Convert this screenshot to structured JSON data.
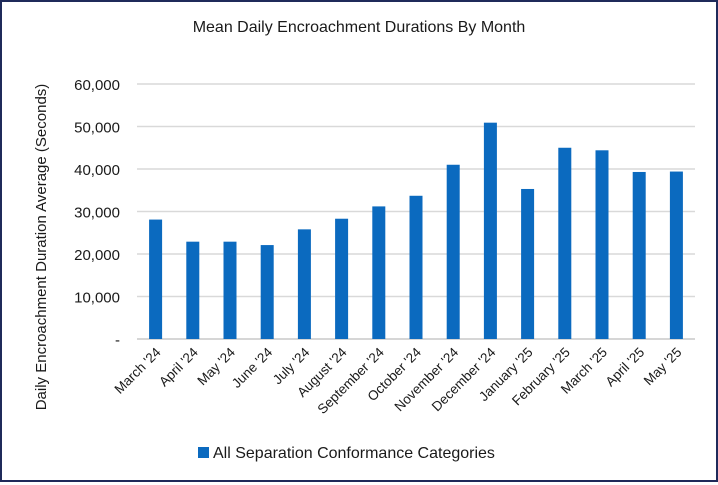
{
  "chart_data": {
    "type": "bar",
    "title": "Mean Daily Encroachment Durations By Month",
    "xlabel": "",
    "ylabel": "Daily Encroachment Duration Average (Seconds)",
    "categories": [
      "March '24",
      "April '24",
      "May '24",
      "June '24",
      "July '24",
      "August '24",
      "September '24",
      "October '24",
      "November '24",
      "December '24",
      "January '25",
      "February '25",
      "March '25",
      "April '25",
      "May '25"
    ],
    "series": [
      {
        "name": "All Separation Conformance Categories",
        "color": "#0b6abf",
        "values": [
          28100,
          22900,
          22900,
          22100,
          25800,
          28300,
          31200,
          33700,
          41000,
          50900,
          35300,
          45000,
          44400,
          39300,
          39400
        ]
      }
    ],
    "ylim": [
      0,
      60000
    ],
    "yticks": [
      0,
      10000,
      20000,
      30000,
      40000,
      50000,
      60000
    ],
    "ytick_labels": [
      "-",
      "10,000",
      "20,000",
      "30,000",
      "40,000",
      "50,000",
      "60,000"
    ],
    "grid": true,
    "legend_position": "bottom-center"
  }
}
